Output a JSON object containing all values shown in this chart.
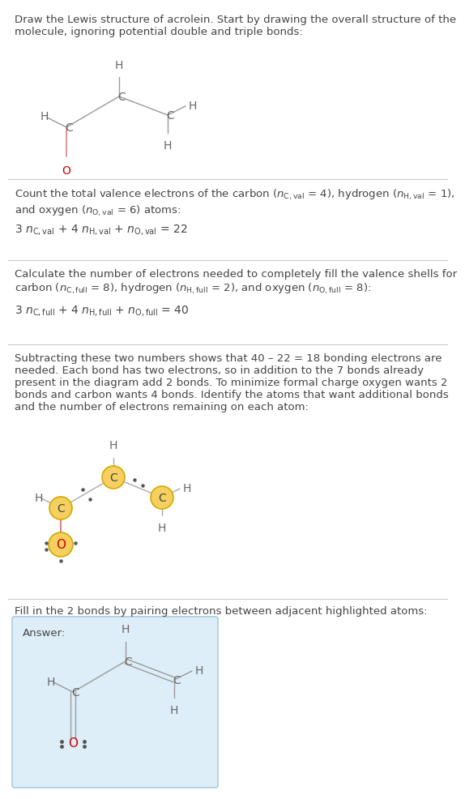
{
  "bg_color": "#ffffff",
  "text_color": "#444444",
  "bond_color": "#999999",
  "bond_pink": "#e08080",
  "O_text_color": "#cc0000",
  "atom_yellow": "#f5d060",
  "atom_yellow_edge": "#d4a800",
  "dot_color": "#555555",
  "answer_box_bg": "#deeef8",
  "answer_box_border": "#aaccdd",
  "divider_color": "#cccccc",
  "title": "Draw the Lewis structure of acrolein. Start by drawing the overall structure of the\nmolecule, ignoring potential double and triple bonds:",
  "s1_line1": "Count the total valence electrons of the carbon (",
  "s1_math1": "n",
  "s1_sub1": "C,val",
  "s1_line1b": " = 4), hydrogen (",
  "s1_math2": "n",
  "s1_sub2": "H,val",
  "s1_line1c": " = 1),",
  "s1_line2": "and oxygen (",
  "s1_math3": "n",
  "s1_sub3": "O,val",
  "s1_line2b": " = 6) atoms:",
  "s1_eq": "3 n",
  "s1_eq_sub1": "C,val",
  "s1_eq2": " + 4 n",
  "s1_eq_sub2": "H,val",
  "s1_eq3": " + n",
  "s1_eq_sub3": "O,val",
  "s1_eq4": " = 22",
  "s2_line1": "Calculate the number of electrons needed to completely fill the valence shells for",
  "s2_line2a": "carbon (",
  "s2_math1": "n",
  "s2_sub1": "C,full",
  "s2_line2b": " = 8), hydrogen (",
  "s2_math2": "n",
  "s2_sub2": "H,full",
  "s2_line2c": " = 2), and oxygen (",
  "s2_math3": "n",
  "s2_sub3": "O,full",
  "s2_line2d": " = 8):",
  "s2_eq": "3 n",
  "s2_eq_sub1": "C,full",
  "s2_eq2": " + 4 n",
  "s2_eq_sub2": "H,full",
  "s2_eq3": " + n",
  "s2_eq_sub3": "O,full",
  "s2_eq4": " = 40",
  "s3_text": "Subtracting these two numbers shows that 40 – 22 = 18 bonding electrons are\nneeded. Each bond has two electrons, so in addition to the 7 bonds already\npresent in the diagram add 2 bonds. To minimize formal charge oxygen wants 2\nbonds and carbon wants 4 bonds. Identify the atoms that want additional bonds\nand the number of electrons remaining on each atom:",
  "s4_text": "Fill in the 2 bonds by pairing electrons between adjacent highlighted atoms:",
  "answer_label": "Answer:"
}
